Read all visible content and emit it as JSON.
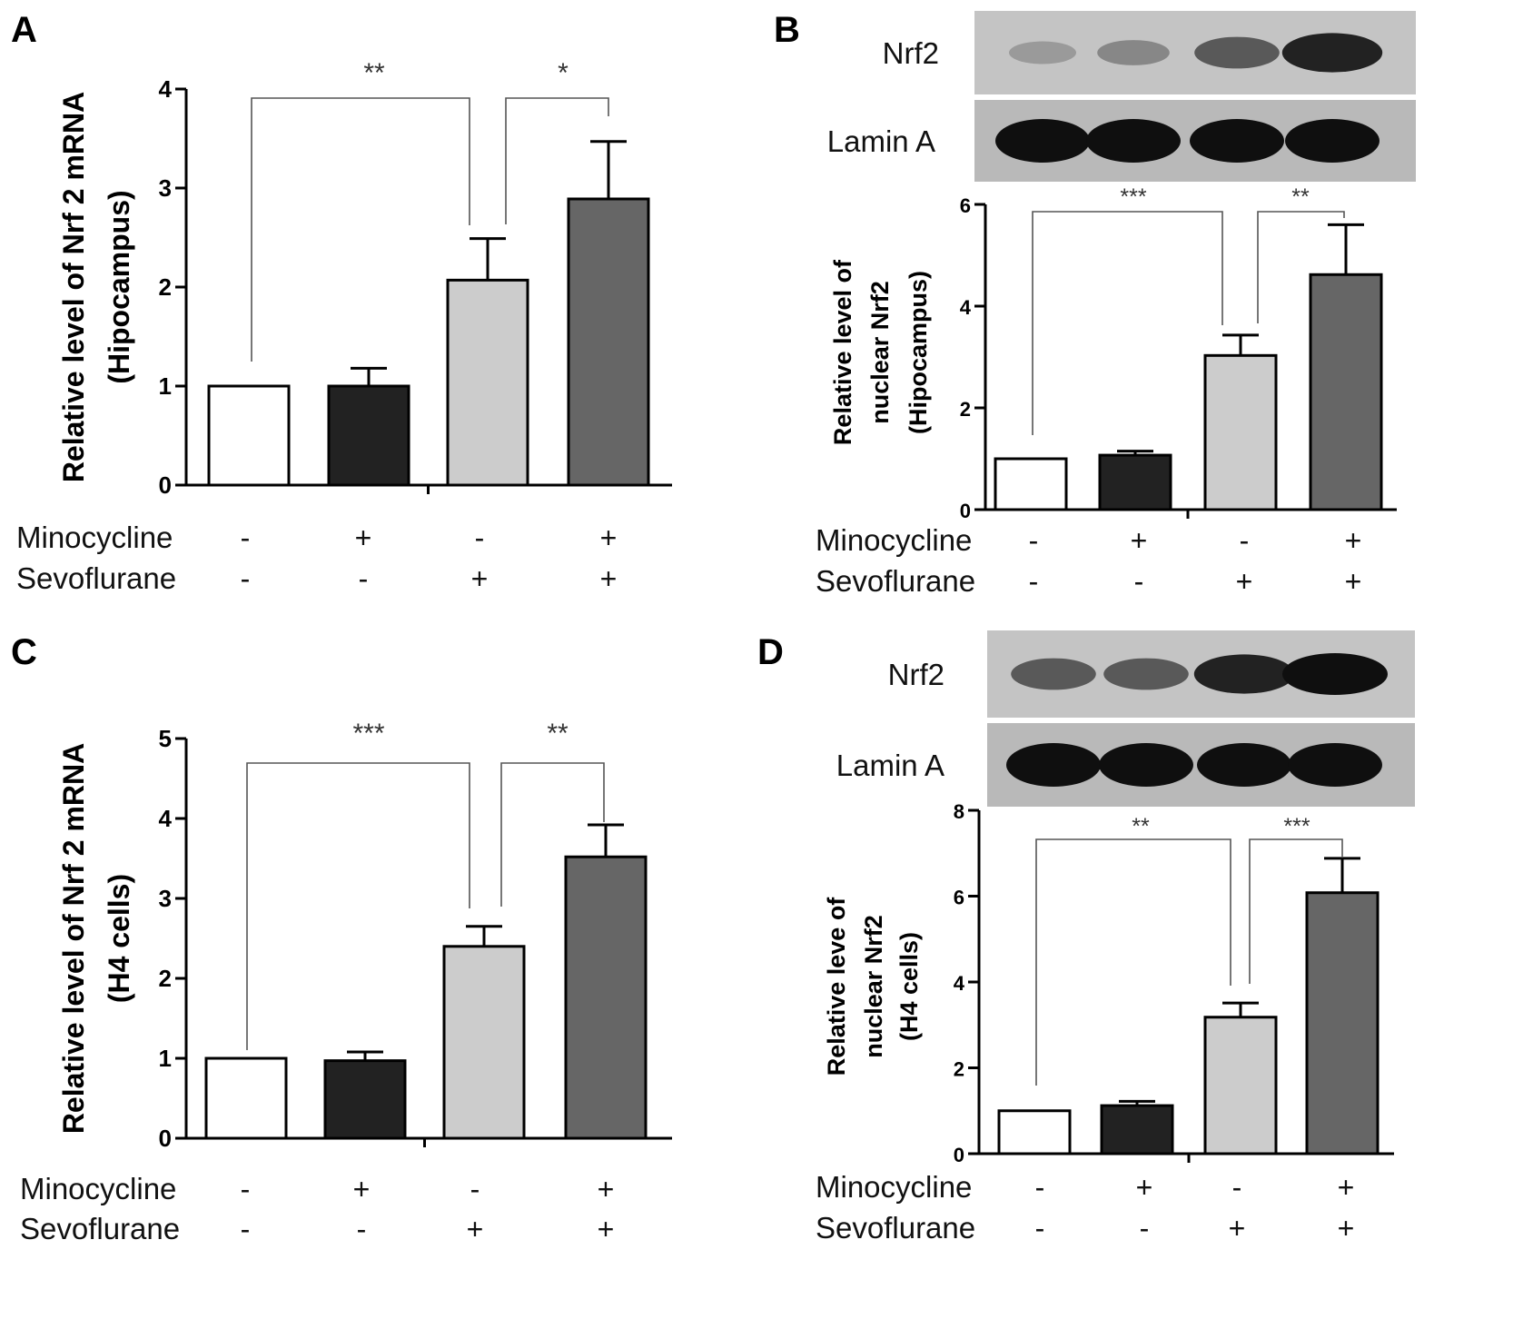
{
  "chart_data": [
    {
      "panel": "A",
      "type": "bar",
      "ylabel_lines": [
        "Relative level of Nrf 2 mRNA",
        "(Hipocampus)"
      ],
      "ylim": [
        0,
        4
      ],
      "yticks": [
        0,
        1,
        2,
        3,
        4
      ],
      "values": [
        1.0,
        1.0,
        2.07,
        2.89
      ],
      "errors": [
        0,
        0.18,
        0.42,
        0.58
      ],
      "bar_colors": [
        "#ffffff",
        "#222222",
        "#cccccc",
        "#666666"
      ],
      "rows": [
        {
          "label": "Minocycline",
          "signs": [
            "-",
            "+",
            "-",
            "+"
          ]
        },
        {
          "label": "Sevoflurane",
          "signs": [
            "-",
            "-",
            "+",
            "+"
          ]
        }
      ],
      "significance": [
        {
          "from": 0,
          "to": 2,
          "label": "**"
        },
        {
          "from": 2,
          "to": 3,
          "label": "*"
        }
      ]
    },
    {
      "panel": "B",
      "type": "bar",
      "ylabel_lines": [
        "Relative level of",
        "nuclear Nrf2",
        "(Hipocampus)"
      ],
      "ylim": [
        0,
        6
      ],
      "yticks": [
        0,
        2,
        4,
        6
      ],
      "values": [
        1.0,
        1.07,
        3.03,
        4.62
      ],
      "errors": [
        0,
        0.08,
        0.4,
        0.98
      ],
      "bar_colors": [
        "#ffffff",
        "#222222",
        "#cccccc",
        "#666666"
      ],
      "rows": [
        {
          "label": "Minocycline",
          "signs": [
            "-",
            "+",
            "-",
            "+"
          ]
        },
        {
          "label": "Sevoflurane",
          "signs": [
            "-",
            "-",
            "+",
            "+"
          ]
        }
      ],
      "significance": [
        {
          "from": 0,
          "to": 2,
          "label": "***"
        },
        {
          "from": 2,
          "to": 3,
          "label": "**"
        }
      ],
      "blot": {
        "rows": [
          {
            "label": "Nrf2",
            "intensity": [
              0.25,
              0.35,
              0.6,
              0.9
            ]
          },
          {
            "label": "Lamin A",
            "intensity": [
              1.0,
              1.0,
              1.0,
              1.0
            ]
          }
        ]
      }
    },
    {
      "panel": "C",
      "type": "bar",
      "ylabel_lines": [
        "Relative level of Nrf 2 mRNA",
        "(H4 cells)"
      ],
      "ylim": [
        0,
        5
      ],
      "yticks": [
        0,
        1,
        2,
        3,
        4,
        5
      ],
      "values": [
        1.0,
        0.97,
        2.4,
        3.52
      ],
      "errors": [
        0,
        0.11,
        0.25,
        0.4
      ],
      "bar_colors": [
        "#ffffff",
        "#222222",
        "#cccccc",
        "#666666"
      ],
      "rows": [
        {
          "label": "Minocycline",
          "signs": [
            "-",
            "+",
            "-",
            "+"
          ]
        },
        {
          "label": "Sevoflurane",
          "signs": [
            "-",
            "-",
            "+",
            "+"
          ]
        }
      ],
      "significance": [
        {
          "from": 0,
          "to": 2,
          "label": "***"
        },
        {
          "from": 2,
          "to": 3,
          "label": "**"
        }
      ]
    },
    {
      "panel": "D",
      "type": "bar",
      "ylabel_lines": [
        "Relative leve of",
        "nuclear Nrf2",
        "(H4 cells)"
      ],
      "ylim": [
        0,
        8
      ],
      "yticks": [
        0,
        2,
        4,
        6,
        8
      ],
      "values": [
        1.0,
        1.12,
        3.18,
        6.08
      ],
      "errors": [
        0,
        0.1,
        0.33,
        0.8
      ],
      "bar_colors": [
        "#ffffff",
        "#222222",
        "#cccccc",
        "#666666"
      ],
      "rows": [
        {
          "label": "Minocycline",
          "signs": [
            "-",
            "+",
            "-",
            "+"
          ]
        },
        {
          "label": "Sevoflurane",
          "signs": [
            "-",
            "-",
            "+",
            "+"
          ]
        }
      ],
      "significance": [
        {
          "from": 0,
          "to": 2,
          "label": "**"
        },
        {
          "from": 2,
          "to": 3,
          "label": "***"
        }
      ],
      "blot": {
        "rows": [
          {
            "label": "Nrf2",
            "intensity": [
              0.6,
              0.6,
              0.9,
              1.0
            ]
          },
          {
            "label": "Lamin A",
            "intensity": [
              1.0,
              1.0,
              1.0,
              1.0
            ]
          }
        ]
      }
    }
  ]
}
